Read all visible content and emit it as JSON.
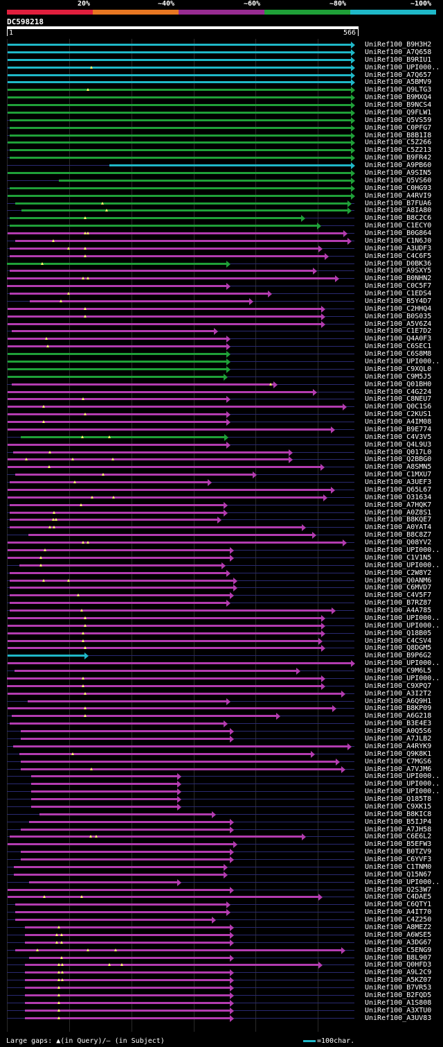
{
  "legend": {
    "labels": [
      "20%",
      "~40%",
      "~60%",
      "~80%",
      "~100%"
    ],
    "colors": [
      "#e01f3d",
      "#e87722",
      "#982c92",
      "#1fa038",
      "#1fb8c8"
    ]
  },
  "query": {
    "id": "DC598218",
    "start": "1",
    "end": "566",
    "length": 566
  },
  "colors": {
    "cyan": "#1fb8c8",
    "green": "#1fa038",
    "magenta": "#b33cb0",
    "line": "#2a2a72",
    "gap": "#ffff66"
  },
  "hits": [
    {
      "name": "UniRef100_B9H3H2",
      "c": "cyan",
      "start": 1,
      "end": 566,
      "gaps": []
    },
    {
      "name": "UniRef100_A7Q658",
      "c": "cyan",
      "start": 1,
      "end": 566,
      "gaps": []
    },
    {
      "name": "UniRef100_B9RIU1",
      "c": "cyan",
      "start": 1,
      "end": 566,
      "gaps": []
    },
    {
      "name": "UniRef100_UPI000..",
      "c": "cyan",
      "start": 1,
      "end": 566,
      "gaps": [
        138
      ]
    },
    {
      "name": "UniRef100_A7Q657",
      "c": "cyan",
      "start": 1,
      "end": 566,
      "gaps": []
    },
    {
      "name": "UniRef100_A5BMV9",
      "c": "cyan",
      "start": 1,
      "end": 566,
      "gaps": []
    },
    {
      "name": "UniRef100_Q9LTG3",
      "c": "green",
      "start": 1,
      "end": 566,
      "gaps": [
        132
      ]
    },
    {
      "name": "UniRef100_B9MXQ4",
      "c": "green",
      "start": 1,
      "end": 566,
      "gaps": []
    },
    {
      "name": "UniRef100_B9NCS4",
      "c": "green",
      "start": 1,
      "end": 566,
      "gaps": []
    },
    {
      "name": "UniRef100_Q9FLW1",
      "c": "green",
      "start": 1,
      "end": 566,
      "gaps": []
    },
    {
      "name": "UniRef100_Q5VS59",
      "c": "green",
      "start": 4,
      "end": 566,
      "gaps": []
    },
    {
      "name": "UniRef100_C0PFG7",
      "c": "green",
      "start": 4,
      "end": 566,
      "gaps": []
    },
    {
      "name": "UniRef100_B8B1I8",
      "c": "green",
      "start": 4,
      "end": 566,
      "gaps": []
    },
    {
      "name": "UniRef100_C5Z266",
      "c": "green",
      "start": 1,
      "end": 566,
      "gaps": []
    },
    {
      "name": "UniRef100_C5Z213",
      "c": "green",
      "start": 4,
      "end": 566,
      "gaps": []
    },
    {
      "name": "UniRef100_B9FR42",
      "c": "green",
      "start": 4,
      "end": 566,
      "gaps": []
    },
    {
      "name": "UniRef100_A9PB60",
      "c": "cyan",
      "start": 167,
      "end": 566,
      "gaps": []
    },
    {
      "name": "UniRef100_A9SIN5",
      "c": "green",
      "start": 1,
      "end": 566,
      "gaps": []
    },
    {
      "name": "UniRef100_Q5VS60",
      "c": "green",
      "start": 85,
      "end": 566,
      "gaps": []
    },
    {
      "name": "UniRef100_C0HG93",
      "c": "green",
      "start": 4,
      "end": 566,
      "gaps": []
    },
    {
      "name": "UniRef100_A4RVI9",
      "c": "green",
      "start": 1,
      "end": 566,
      "gaps": []
    },
    {
      "name": "UniRef100_B7FUA6",
      "c": "green",
      "start": 14,
      "end": 560,
      "gaps": [
        156
      ]
    },
    {
      "name": "UniRef100_A8IA80",
      "c": "green",
      "start": 24,
      "end": 560,
      "gaps": [
        162
      ]
    },
    {
      "name": "UniRef100_B8C2C6",
      "c": "green",
      "start": 4,
      "end": 485,
      "gaps": [
        127
      ]
    },
    {
      "name": "UniRef100_C1ECY0",
      "c": "green",
      "start": 4,
      "end": 511,
      "gaps": []
    },
    {
      "name": "UniRef100_B0G864",
      "c": "magenta",
      "start": 1,
      "end": 554,
      "gaps": [
        127,
        132
      ]
    },
    {
      "name": "UniRef100_C1N6J0",
      "c": "magenta",
      "start": 14,
      "end": 560,
      "gaps": [
        75
      ]
    },
    {
      "name": "UniRef100_A3UDF3",
      "c": "magenta",
      "start": 4,
      "end": 513,
      "gaps": [
        100,
        127
      ]
    },
    {
      "name": "UniRef100_C4C6F5",
      "c": "magenta",
      "start": 4,
      "end": 523,
      "gaps": [
        127
      ]
    },
    {
      "name": "UniRef100_D0BK36",
      "c": "green",
      "start": 0,
      "end": 363,
      "gaps": [
        58
      ]
    },
    {
      "name": "UniRef100_A9SXY5",
      "c": "magenta",
      "start": 4,
      "end": 504,
      "gaps": []
    },
    {
      "name": "UniRef100_B0NHN2",
      "c": "magenta",
      "start": 0,
      "end": 540,
      "gaps": [
        124,
        132
      ]
    },
    {
      "name": "UniRef100_C0C5F7",
      "c": "magenta",
      "start": 0,
      "end": 363,
      "gaps": []
    },
    {
      "name": "UniRef100_C1EDS4",
      "c": "magenta",
      "start": 4,
      "end": 431,
      "gaps": [
        100
      ]
    },
    {
      "name": "UniRef100_B5Y4D7",
      "c": "magenta",
      "start": 37,
      "end": 400,
      "gaps": [
        88
      ]
    },
    {
      "name": "UniRef100_C2HHQ4",
      "c": "magenta",
      "start": 1,
      "end": 518,
      "gaps": [
        127
      ]
    },
    {
      "name": "UniRef100_B0S035",
      "c": "magenta",
      "start": 1,
      "end": 518,
      "gaps": [
        127
      ]
    },
    {
      "name": "UniRef100_A5V6Z4",
      "c": "magenta",
      "start": 1,
      "end": 518,
      "gaps": []
    },
    {
      "name": "UniRef100_C1E7D2",
      "c": "magenta",
      "start": 8,
      "end": 343,
      "gaps": []
    },
    {
      "name": "UniRef100_Q4A0F3",
      "c": "magenta",
      "start": 1,
      "end": 363,
      "gaps": [
        64
      ]
    },
    {
      "name": "UniRef100_C6SEC1",
      "c": "magenta",
      "start": 1,
      "end": 363,
      "gaps": [
        67
      ]
    },
    {
      "name": "UniRef100_C6S8M8",
      "c": "green",
      "start": 1,
      "end": 363,
      "gaps": []
    },
    {
      "name": "UniRef100_UPI000..",
      "c": "green",
      "start": 1,
      "end": 363,
      "gaps": []
    },
    {
      "name": "UniRef100_C9XQL0",
      "c": "green",
      "start": 1,
      "end": 363,
      "gaps": []
    },
    {
      "name": "UniRef100_C9M5J5",
      "c": "green",
      "start": 1,
      "end": 358,
      "gaps": []
    },
    {
      "name": "UniRef100_Q01BH0",
      "c": "magenta",
      "start": 8,
      "end": 440,
      "gaps": [
        430
      ]
    },
    {
      "name": "UniRef100_C4G224",
      "c": "magenta",
      "start": 1,
      "end": 504,
      "gaps": []
    },
    {
      "name": "UniRef100_C8NEU7",
      "c": "magenta",
      "start": 1,
      "end": 363,
      "gaps": [
        124
      ]
    },
    {
      "name": "UniRef100_Q0C1S6",
      "c": "magenta",
      "start": 1,
      "end": 552,
      "gaps": [
        60
      ]
    },
    {
      "name": "UniRef100_C2KUS1",
      "c": "magenta",
      "start": 1,
      "end": 363,
      "gaps": [
        127
      ]
    },
    {
      "name": "UniRef100_A4IM08",
      "c": "magenta",
      "start": 1,
      "end": 363,
      "gaps": [
        60
      ]
    },
    {
      "name": "UniRef100_B9E774",
      "c": "magenta",
      "start": 1,
      "end": 533,
      "gaps": []
    },
    {
      "name": "UniRef100_C4V3V5",
      "c": "green",
      "start": 23,
      "end": 360,
      "gaps": [
        123,
        167
      ]
    },
    {
      "name": "UniRef100_Q4L9U3",
      "c": "magenta",
      "start": 1,
      "end": 363,
      "gaps": []
    },
    {
      "name": "UniRef100_Q017L0",
      "c": "magenta",
      "start": 10,
      "end": 464,
      "gaps": [
        70
      ]
    },
    {
      "name": "UniRef100_Q2BBG0",
      "c": "magenta",
      "start": 1,
      "end": 464,
      "gaps": [
        31,
        107,
        172
      ]
    },
    {
      "name": "UniRef100_A8SMN5",
      "c": "magenta",
      "start": 1,
      "end": 516,
      "gaps": [
        69
      ]
    },
    {
      "name": "UniRef100_C1MXU7",
      "c": "magenta",
      "start": 14,
      "end": 406,
      "gaps": [
        157
      ]
    },
    {
      "name": "UniRef100_A3UEF3",
      "c": "magenta",
      "start": 4,
      "end": 333,
      "gaps": [
        110
      ]
    },
    {
      "name": "UniRef100_Q65L67",
      "c": "magenta",
      "start": 1,
      "end": 533,
      "gaps": []
    },
    {
      "name": "UniRef100_O31634",
      "c": "magenta",
      "start": 1,
      "end": 521,
      "gaps": [
        139,
        174
      ]
    },
    {
      "name": "UniRef100_A7HQK7",
      "c": "magenta",
      "start": 4,
      "end": 358,
      "gaps": [
        121
      ]
    },
    {
      "name": "UniRef100_A0Z8S1",
      "c": "magenta",
      "start": 4,
      "end": 358,
      "gaps": [
        77
      ]
    },
    {
      "name": "UniRef100_B8KQE7",
      "c": "magenta",
      "start": 4,
      "end": 348,
      "gaps": [
        75,
        80
      ]
    },
    {
      "name": "UniRef100_A0YAT4",
      "c": "magenta",
      "start": 4,
      "end": 486,
      "gaps": [
        70,
        77
      ]
    },
    {
      "name": "UniRef100_B8C8Z7",
      "c": "magenta",
      "start": 35,
      "end": 503,
      "gaps": []
    },
    {
      "name": "UniRef100_Q08YV2",
      "c": "magenta",
      "start": 1,
      "end": 552,
      "gaps": [
        124,
        132
      ]
    },
    {
      "name": "UniRef100_UPI000..",
      "c": "magenta",
      "start": 1,
      "end": 369,
      "gaps": [
        62
      ]
    },
    {
      "name": "UniRef100_C1V1N5",
      "c": "magenta",
      "start": 1,
      "end": 369,
      "gaps": [
        55
      ]
    },
    {
      "name": "UniRef100_UPI000..",
      "c": "magenta",
      "start": 20,
      "end": 355,
      "gaps": [
        55
      ]
    },
    {
      "name": "UniRef100_C2W8Y2",
      "c": "magenta",
      "start": 4,
      "end": 363,
      "gaps": []
    },
    {
      "name": "UniRef100_Q0ANM6",
      "c": "magenta",
      "start": 4,
      "end": 374,
      "gaps": [
        60,
        100
      ]
    },
    {
      "name": "UniRef100_C6MVD7",
      "c": "magenta",
      "start": 4,
      "end": 374,
      "gaps": []
    },
    {
      "name": "UniRef100_C4V5F7",
      "c": "magenta",
      "start": 4,
      "end": 369,
      "gaps": [
        116
      ]
    },
    {
      "name": "UniRef100_B7RZ87",
      "c": "magenta",
      "start": 4,
      "end": 363,
      "gaps": []
    },
    {
      "name": "UniRef100_A4A785",
      "c": "magenta",
      "start": 4,
      "end": 534,
      "gaps": [
        122
      ]
    },
    {
      "name": "UniRef100_UPI000..",
      "c": "magenta",
      "start": 1,
      "end": 518,
      "gaps": [
        127
      ]
    },
    {
      "name": "UniRef100_UPI000..",
      "c": "magenta",
      "start": 1,
      "end": 518,
      "gaps": [
        127
      ]
    },
    {
      "name": "UniRef100_Q18B05",
      "c": "magenta",
      "start": 1,
      "end": 518,
      "gaps": [
        124
      ]
    },
    {
      "name": "UniRef100_C4CSV4",
      "c": "magenta",
      "start": 1,
      "end": 513,
      "gaps": [
        124
      ]
    },
    {
      "name": "UniRef100_Q8DGM5",
      "c": "magenta",
      "start": 1,
      "end": 518,
      "gaps": [
        127
      ]
    },
    {
      "name": "UniRef100_B9P6G2",
      "c": "cyan",
      "start": 1,
      "end": 132,
      "gaps": []
    },
    {
      "name": "UniRef100_UPI000..",
      "c": "magenta",
      "start": 1,
      "end": 566,
      "gaps": []
    },
    {
      "name": "UniRef100_C9M6L5",
      "c": "magenta",
      "start": 12,
      "end": 477,
      "gaps": []
    },
    {
      "name": "UniRef100_UPI000..",
      "c": "magenta",
      "start": 0,
      "end": 518,
      "gaps": [
        124
      ]
    },
    {
      "name": "UniRef100_C9XPQ7",
      "c": "magenta",
      "start": 0,
      "end": 518,
      "gaps": [
        124
      ]
    },
    {
      "name": "UniRef100_A3I2T2",
      "c": "magenta",
      "start": 1,
      "end": 550,
      "gaps": [
        127
      ]
    },
    {
      "name": "UniRef100_A6Q9H1",
      "c": "magenta",
      "start": 34,
      "end": 363,
      "gaps": []
    },
    {
      "name": "UniRef100_B8KP09",
      "c": "magenta",
      "start": 1,
      "end": 535,
      "gaps": [
        127
      ]
    },
    {
      "name": "UniRef100_A6G218",
      "c": "magenta",
      "start": 8,
      "end": 444,
      "gaps": [
        127
      ]
    },
    {
      "name": "UniRef100_B3E4E3",
      "c": "magenta",
      "start": 4,
      "end": 358,
      "gaps": []
    },
    {
      "name": "UniRef100_A0Q5S6",
      "c": "magenta",
      "start": 23,
      "end": 369,
      "gaps": []
    },
    {
      "name": "UniRef100_A7JLB2",
      "c": "magenta",
      "start": 23,
      "end": 369,
      "gaps": []
    },
    {
      "name": "UniRef100_A4RYK9",
      "c": "magenta",
      "start": 10,
      "end": 560,
      "gaps": []
    },
    {
      "name": "UniRef100_Q9K8K1",
      "c": "magenta",
      "start": 20,
      "end": 500,
      "gaps": [
        107
      ]
    },
    {
      "name": "UniRef100_C7MGS6",
      "c": "magenta",
      "start": 23,
      "end": 541,
      "gaps": []
    },
    {
      "name": "UniRef100_A7VJM6",
      "c": "magenta",
      "start": 23,
      "end": 550,
      "gaps": [
        138
      ]
    },
    {
      "name": "UniRef100_UPI000..",
      "c": "magenta",
      "start": 39,
      "end": 283,
      "gaps": []
    },
    {
      "name": "UniRef100_UPI000..",
      "c": "magenta",
      "start": 39,
      "end": 283,
      "gaps": []
    },
    {
      "name": "UniRef100_UPI000..",
      "c": "magenta",
      "start": 39,
      "end": 283,
      "gaps": []
    },
    {
      "name": "UniRef100_Q185T8",
      "c": "magenta",
      "start": 39,
      "end": 283,
      "gaps": []
    },
    {
      "name": "UniRef100_C9XK15",
      "c": "magenta",
      "start": 39,
      "end": 283,
      "gaps": []
    },
    {
      "name": "UniRef100_B8KIC8",
      "c": "magenta",
      "start": 53,
      "end": 339,
      "gaps": []
    },
    {
      "name": "UniRef100_B5IJP4",
      "c": "magenta",
      "start": 36,
      "end": 369,
      "gaps": []
    },
    {
      "name": "UniRef100_A7JH58",
      "c": "magenta",
      "start": 23,
      "end": 369,
      "gaps": []
    },
    {
      "name": "UniRef100_C6E6L2",
      "c": "magenta",
      "start": 4,
      "end": 486,
      "gaps": [
        136,
        145
      ]
    },
    {
      "name": "UniRef100_B5EFW3",
      "c": "magenta",
      "start": 1,
      "end": 374,
      "gaps": []
    },
    {
      "name": "UniRef100_B0TZV9",
      "c": "magenta",
      "start": 23,
      "end": 369,
      "gaps": []
    },
    {
      "name": "UniRef100_C6YVF3",
      "c": "magenta",
      "start": 23,
      "end": 369,
      "gaps": []
    },
    {
      "name": "UniRef100_C1TNM0",
      "c": "magenta",
      "start": 11,
      "end": 358,
      "gaps": []
    },
    {
      "name": "UniRef100_Q15N67",
      "c": "magenta",
      "start": 11,
      "end": 358,
      "gaps": []
    },
    {
      "name": "UniRef100_UPI000..",
      "c": "magenta",
      "start": 36,
      "end": 283,
      "gaps": []
    },
    {
      "name": "UniRef100_Q2S3W7",
      "c": "magenta",
      "start": 1,
      "end": 369,
      "gaps": []
    },
    {
      "name": "UniRef100_C4DAE5",
      "c": "magenta",
      "start": 1,
      "end": 513,
      "gaps": [
        61,
        122
      ]
    },
    {
      "name": "UniRef100_C6QTY1",
      "c": "magenta",
      "start": 14,
      "end": 363,
      "gaps": []
    },
    {
      "name": "UniRef100_A4IT70",
      "c": "magenta",
      "start": 14,
      "end": 363,
      "gaps": []
    },
    {
      "name": "UniRef100_C4Z250",
      "c": "magenta",
      "start": 14,
      "end": 339,
      "gaps": []
    },
    {
      "name": "UniRef100_A8MEZ2",
      "c": "magenta",
      "start": 29,
      "end": 369,
      "gaps": [
        84
      ]
    },
    {
      "name": "UniRef100_A6WSE5",
      "c": "magenta",
      "start": 29,
      "end": 369,
      "gaps": [
        81,
        89
      ]
    },
    {
      "name": "UniRef100_A3DG67",
      "c": "magenta",
      "start": 29,
      "end": 369,
      "gaps": [
        81,
        89
      ]
    },
    {
      "name": "UniRef100_C5ENG9",
      "c": "magenta",
      "start": 14,
      "end": 550,
      "gaps": [
        50,
        132,
        177
      ]
    },
    {
      "name": "UniRef100_B8L907",
      "c": "magenta",
      "start": 36,
      "end": 369,
      "gaps": [
        89
      ]
    },
    {
      "name": "UniRef100_Q0HFD3",
      "c": "magenta",
      "start": 29,
      "end": 513,
      "gaps": [
        84,
        90,
        167,
        187
      ]
    },
    {
      "name": "UniRef100_A9L2C9",
      "c": "magenta",
      "start": 29,
      "end": 369,
      "gaps": [
        84,
        90
      ]
    },
    {
      "name": "UniRef100_A5KZ07",
      "c": "magenta",
      "start": 29,
      "end": 369,
      "gaps": [
        84,
        90
      ]
    },
    {
      "name": "UniRef100_B7VR53",
      "c": "magenta",
      "start": 29,
      "end": 369,
      "gaps": [
        84
      ]
    },
    {
      "name": "UniRef100_B2FQD5",
      "c": "magenta",
      "start": 29,
      "end": 369,
      "gaps": [
        84
      ]
    },
    {
      "name": "UniRef100_A1S808",
      "c": "magenta",
      "start": 29,
      "end": 369,
      "gaps": [
        84
      ]
    },
    {
      "name": "UniRef100_A3XTU0",
      "c": "magenta",
      "start": 29,
      "end": 369,
      "gaps": [
        84
      ]
    },
    {
      "name": "UniRef100_A3UV83",
      "c": "magenta",
      "start": 29,
      "end": 369,
      "gaps": [
        84
      ]
    }
  ],
  "footer": {
    "large_gaps_prefix": "Large gaps:",
    "in_query": "(in Query)/",
    "dash": "—",
    "in_subject": " (in Subject)",
    "scale_label": "=100char."
  }
}
